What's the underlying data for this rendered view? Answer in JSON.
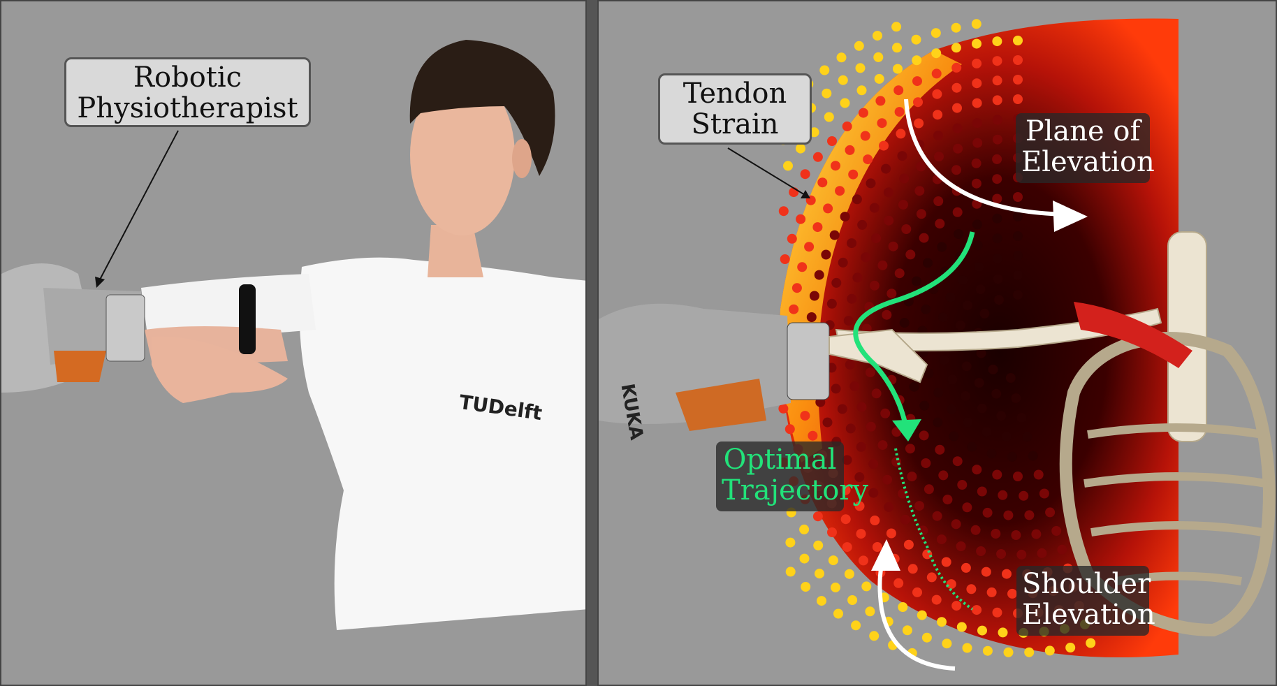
{
  "left_panel": {
    "label_line1": "Robotic",
    "label_line2": "Physiotherapist",
    "shirt_logo": "TUDelft"
  },
  "right_panel": {
    "tendon_line1": "Tendon",
    "tendon_line2": "Strain",
    "plane_line1": "Plane of",
    "plane_line2": "Elevation",
    "optimal_line1": "Optimal",
    "optimal_line2": "Trajectory",
    "shoulder_line1": "Shoulder",
    "shoulder_line2": "Elevation",
    "robot_brand": "KUKA"
  },
  "colors": {
    "background": "#999999",
    "trajectory": "#22e27a",
    "arrow": "#ffffff",
    "strain_high": "#ffe600",
    "strain_mid": "#e8250a",
    "strain_low": "#2a0000"
  }
}
